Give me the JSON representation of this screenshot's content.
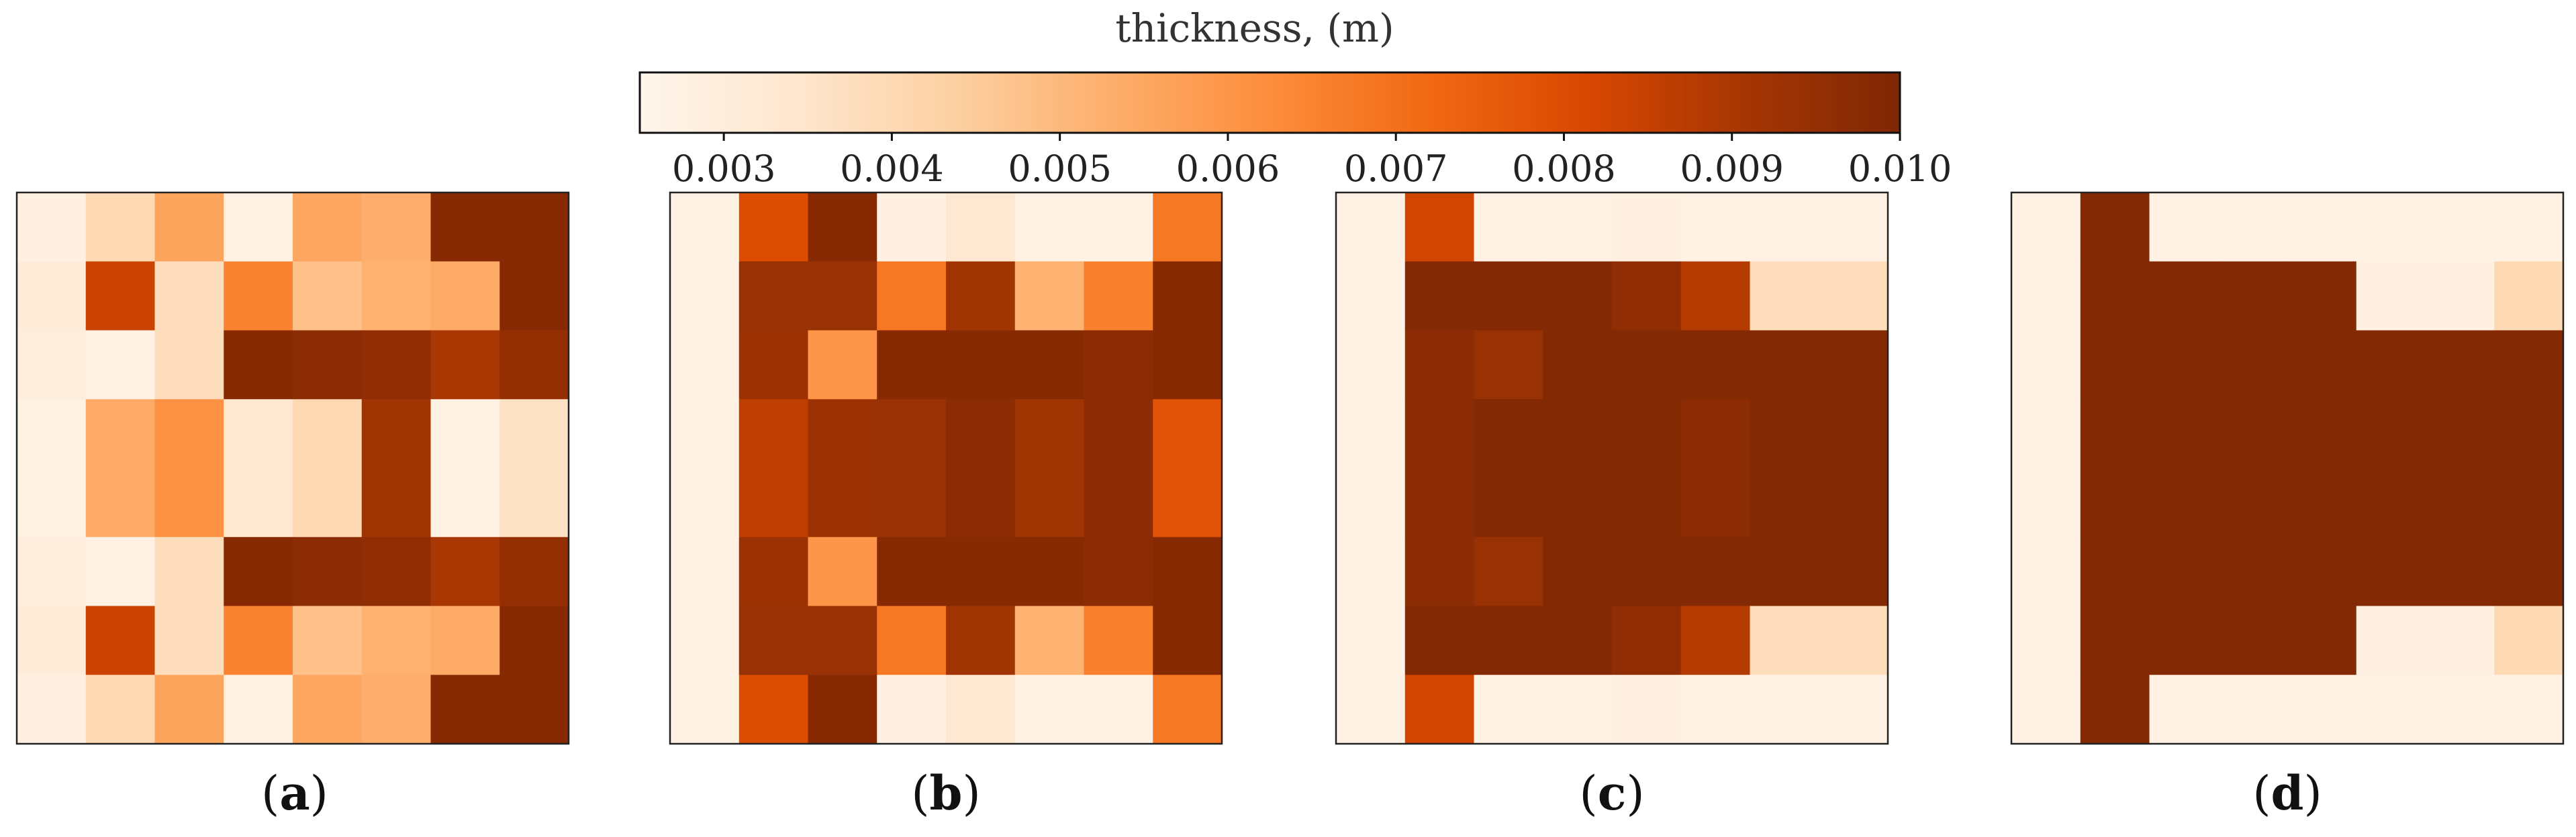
{
  "chart_data": {
    "type": "heatmap",
    "colorbar": {
      "title": "thickness, (m)",
      "range": [
        0.0025,
        0.01
      ],
      "ticks": [
        0.003,
        0.004,
        0.005,
        0.006,
        0.007,
        0.008,
        0.009,
        0.01
      ],
      "tick_labels": [
        "0.003",
        "0.004",
        "0.005",
        "0.006",
        "0.007",
        "0.008",
        "0.009",
        "0.010"
      ],
      "colors": [
        "#fff5eb",
        "#fee6ce",
        "#fdd0a2",
        "#fdae6b",
        "#fd8d3c",
        "#f16913",
        "#d94801",
        "#a63603",
        "#7f2704"
      ]
    },
    "panels": [
      {
        "label_open": "(",
        "label_letter": "a",
        "label_close": ")",
        "grid": [
          [
            0.0028,
            0.004,
            0.0056,
            0.0027,
            0.0055,
            0.0053,
            0.0098,
            0.0098
          ],
          [
            0.0031,
            0.0084,
            0.0038,
            0.0065,
            0.0048,
            0.0052,
            0.0054,
            0.0098
          ],
          [
            0.003,
            0.0027,
            0.0038,
            0.0098,
            0.0097,
            0.0096,
            0.009,
            0.0095
          ],
          [
            0.0027,
            0.0054,
            0.0061,
            0.0033,
            0.004,
            0.0092,
            0.0027,
            0.0036
          ],
          [
            0.0027,
            0.0054,
            0.0061,
            0.0033,
            0.004,
            0.0092,
            0.0027,
            0.0036
          ],
          [
            0.003,
            0.0027,
            0.0038,
            0.0098,
            0.0097,
            0.0096,
            0.009,
            0.0095
          ],
          [
            0.0031,
            0.0084,
            0.0038,
            0.0065,
            0.0048,
            0.0052,
            0.0054,
            0.0098
          ],
          [
            0.0028,
            0.004,
            0.0056,
            0.0027,
            0.0055,
            0.0053,
            0.0098,
            0.0098
          ]
        ]
      },
      {
        "label_open": "(",
        "label_letter": "b",
        "label_close": ")",
        "grid": [
          [
            0.0027,
            0.008,
            0.0098,
            0.0028,
            0.0033,
            0.0027,
            0.0027,
            0.0068
          ],
          [
            0.0027,
            0.0094,
            0.0094,
            0.0068,
            0.0092,
            0.0052,
            0.0066,
            0.0098
          ],
          [
            0.0027,
            0.0093,
            0.006,
            0.0098,
            0.0098,
            0.0098,
            0.0097,
            0.0098
          ],
          [
            0.0027,
            0.0086,
            0.0093,
            0.0094,
            0.0097,
            0.0092,
            0.0097,
            0.0078
          ],
          [
            0.0027,
            0.0086,
            0.0093,
            0.0094,
            0.0097,
            0.0092,
            0.0097,
            0.0078
          ],
          [
            0.0027,
            0.0093,
            0.006,
            0.0098,
            0.0098,
            0.0098,
            0.0097,
            0.0098
          ],
          [
            0.0027,
            0.0094,
            0.0094,
            0.0068,
            0.0092,
            0.0052,
            0.0066,
            0.0098
          ],
          [
            0.0027,
            0.008,
            0.0098,
            0.0028,
            0.0033,
            0.0027,
            0.0027,
            0.0068
          ]
        ]
      },
      {
        "label_open": "(",
        "label_letter": "c",
        "label_close": ")",
        "grid": [
          [
            0.0027,
            0.0083,
            0.0027,
            0.0027,
            0.0028,
            0.0027,
            0.0027,
            0.0027
          ],
          [
            0.0027,
            0.0099,
            0.0099,
            0.0099,
            0.0096,
            0.0088,
            0.0038,
            0.0038
          ],
          [
            0.0027,
            0.0097,
            0.0094,
            0.0099,
            0.0099,
            0.0099,
            0.0099,
            0.0099
          ],
          [
            0.0027,
            0.0097,
            0.0099,
            0.0099,
            0.0099,
            0.0097,
            0.0099,
            0.0099
          ],
          [
            0.0027,
            0.0097,
            0.0099,
            0.0099,
            0.0099,
            0.0097,
            0.0099,
            0.0099
          ],
          [
            0.0027,
            0.0097,
            0.0094,
            0.0099,
            0.0099,
            0.0099,
            0.0099,
            0.0099
          ],
          [
            0.0027,
            0.0099,
            0.0099,
            0.0099,
            0.0096,
            0.0088,
            0.0038,
            0.0038
          ],
          [
            0.0027,
            0.0083,
            0.0027,
            0.0027,
            0.0028,
            0.0027,
            0.0027,
            0.0027
          ]
        ]
      },
      {
        "label_open": "(",
        "label_letter": "d",
        "label_close": ")",
        "grid": [
          [
            0.0027,
            0.0099,
            0.0027,
            0.0027,
            0.0027,
            0.0027,
            0.0027,
            0.0027
          ],
          [
            0.0027,
            0.0099,
            0.0099,
            0.0099,
            0.0099,
            0.0028,
            0.0028,
            0.004
          ],
          [
            0.0027,
            0.0099,
            0.0099,
            0.0099,
            0.0099,
            0.0099,
            0.0099,
            0.0099
          ],
          [
            0.0027,
            0.0099,
            0.0099,
            0.0099,
            0.0099,
            0.0099,
            0.0099,
            0.0099
          ],
          [
            0.0027,
            0.0099,
            0.0099,
            0.0099,
            0.0099,
            0.0099,
            0.0099,
            0.0099
          ],
          [
            0.0027,
            0.0099,
            0.0099,
            0.0099,
            0.0099,
            0.0099,
            0.0099,
            0.0099
          ],
          [
            0.0027,
            0.0099,
            0.0099,
            0.0099,
            0.0099,
            0.0028,
            0.0028,
            0.004
          ],
          [
            0.0027,
            0.0099,
            0.0027,
            0.0027,
            0.0027,
            0.0027,
            0.0027,
            0.0027
          ]
        ]
      }
    ]
  }
}
